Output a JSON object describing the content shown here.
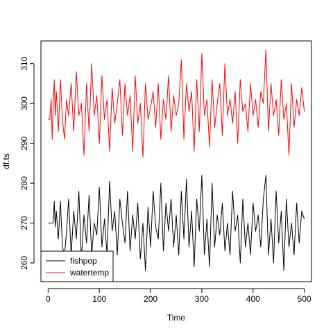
{
  "chart_data": {
    "type": "line",
    "title": "",
    "xlabel": "Time",
    "ylabel": "df.ts",
    "xlim": [
      -14,
      514
    ],
    "ylim": [
      255.3,
      315.7
    ],
    "x_ticks": [
      0,
      100,
      200,
      300,
      400,
      500
    ],
    "y_ticks": [
      260,
      270,
      280,
      290,
      300,
      310
    ],
    "grid": false,
    "legend": {
      "position": "bottom-left",
      "entries": [
        "fishpop",
        "watertemp"
      ]
    },
    "series": [
      {
        "name": "fishpop",
        "color": "#000000",
        "x": [
          0,
          4,
          8,
          10,
          12,
          14,
          16,
          20,
          24,
          28,
          32,
          36,
          40,
          45,
          50,
          55,
          60,
          65,
          70,
          75,
          80,
          85,
          90,
          95,
          100,
          105,
          110,
          115,
          120,
          125,
          130,
          135,
          140,
          145,
          150,
          155,
          160,
          165,
          170,
          175,
          180,
          185,
          190,
          195,
          200,
          205,
          210,
          215,
          220,
          225,
          230,
          235,
          240,
          245,
          250,
          255,
          260,
          265,
          270,
          275,
          280,
          285,
          290,
          295,
          300,
          305,
          310,
          315,
          320,
          325,
          330,
          335,
          340,
          345,
          350,
          355,
          360,
          365,
          370,
          375,
          380,
          385,
          390,
          395,
          400,
          405,
          410,
          415,
          420,
          425,
          430,
          435,
          440,
          445,
          450,
          455,
          460,
          465,
          470,
          475,
          480,
          485,
          490,
          495,
          500
        ],
        "values": [
          270,
          270,
          270,
          270,
          275.5,
          269,
          273,
          266,
          275.5,
          264,
          262,
          268,
          276,
          262,
          273,
          266,
          278,
          261,
          272,
          265,
          277,
          262,
          270,
          267,
          279,
          264,
          271,
          262,
          280.5,
          268,
          273,
          262,
          276,
          270,
          265,
          278,
          263,
          272,
          266,
          275,
          261,
          270,
          258,
          274,
          264,
          278,
          269,
          266,
          280,
          263,
          275,
          268,
          276,
          264,
          272,
          262,
          278,
          266,
          281,
          264,
          273,
          259,
          276,
          268,
          282,
          262,
          271,
          259,
          280,
          264,
          272,
          267,
          275,
          263,
          270,
          262,
          278,
          268,
          272,
          260,
          276,
          264,
          270,
          262,
          275,
          268,
          272,
          264,
          276,
          282,
          262,
          271,
          260,
          278,
          265,
          273,
          258,
          276,
          264,
          270,
          262,
          275,
          265,
          273,
          271
        ]
      },
      {
        "name": "watertemp",
        "color": "#ff0000",
        "x": [
          0,
          3,
          6,
          8,
          10,
          12,
          14,
          16,
          20,
          24,
          28,
          32,
          36,
          40,
          45,
          50,
          55,
          60,
          65,
          70,
          75,
          80,
          85,
          90,
          95,
          100,
          105,
          110,
          115,
          120,
          125,
          130,
          135,
          140,
          145,
          150,
          155,
          160,
          165,
          170,
          175,
          180,
          185,
          190,
          195,
          200,
          205,
          210,
          215,
          220,
          225,
          230,
          235,
          240,
          245,
          250,
          255,
          260,
          265,
          270,
          275,
          280,
          285,
          290,
          295,
          300,
          305,
          310,
          315,
          320,
          325,
          330,
          335,
          340,
          345,
          350,
          355,
          360,
          365,
          370,
          375,
          380,
          385,
          390,
          395,
          400,
          405,
          410,
          415,
          420,
          425,
          430,
          435,
          440,
          445,
          450,
          455,
          460,
          465,
          470,
          475,
          480,
          485,
          490,
          495,
          500
        ],
        "values": [
          296,
          296,
          301,
          291,
          300,
          306,
          297,
          303,
          293,
          306,
          296,
          291,
          301,
          297,
          305,
          293,
          308,
          297,
          300,
          287,
          305,
          293,
          310,
          297,
          302,
          290,
          307,
          296,
          301,
          288,
          304,
          295,
          300,
          306,
          292,
          305,
          297,
          302,
          288,
          307,
          295,
          300,
          286.5,
          305,
          296,
          299,
          303,
          294,
          305,
          291,
          301,
          296,
          307,
          293,
          302,
          297,
          300,
          311,
          291,
          305,
          298,
          303,
          288,
          306,
          293,
          312.5,
          297,
          301,
          289,
          306,
          294,
          300,
          305,
          292,
          310,
          297,
          301,
          295,
          303,
          290,
          306,
          298,
          300,
          293,
          305,
          297,
          301,
          294,
          303,
          300,
          313.5,
          293,
          305,
          297,
          301,
          292,
          306,
          296,
          300,
          287,
          305,
          294,
          301,
          297,
          304,
          298
        ]
      }
    ]
  }
}
